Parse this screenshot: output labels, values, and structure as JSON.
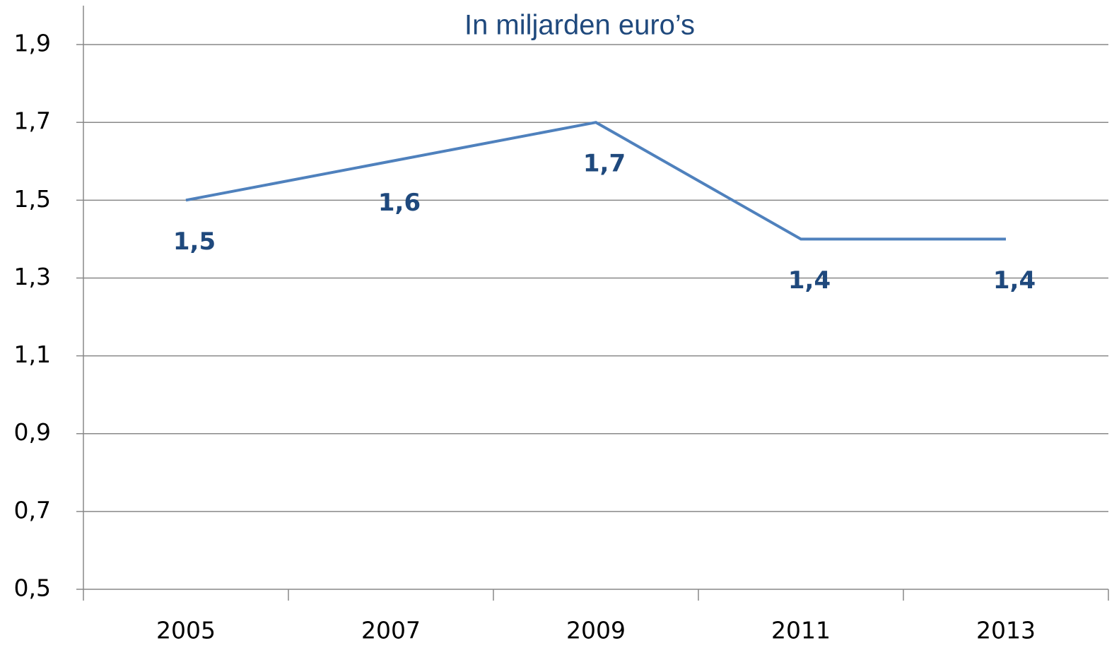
{
  "chart_data": {
    "type": "line",
    "title": "In miljarden euro’s",
    "categories": [
      "2005",
      "2007",
      "2009",
      "2011",
      "2013"
    ],
    "series": [
      {
        "name": "In miljarden euro’s",
        "color": "#4f81bd",
        "values": [
          1.5,
          1.6,
          1.7,
          1.4,
          1.4
        ],
        "value_labels": [
          "1,5",
          "1,6",
          "1,7",
          "1,4",
          "1,4"
        ]
      }
    ],
    "ylim": [
      0.5,
      2.0
    ],
    "yticks": [
      {
        "value": 0.5,
        "label": "0,5"
      },
      {
        "value": 0.7,
        "label": "0,7"
      },
      {
        "value": 0.9,
        "label": "0,9"
      },
      {
        "value": 1.1,
        "label": "1,1"
      },
      {
        "value": 1.3,
        "label": "1,3"
      },
      {
        "value": 1.5,
        "label": "1,5"
      },
      {
        "value": 1.7,
        "label": "1,7"
      },
      {
        "value": 1.9,
        "label": "1,9"
      }
    ],
    "grid": true
  }
}
